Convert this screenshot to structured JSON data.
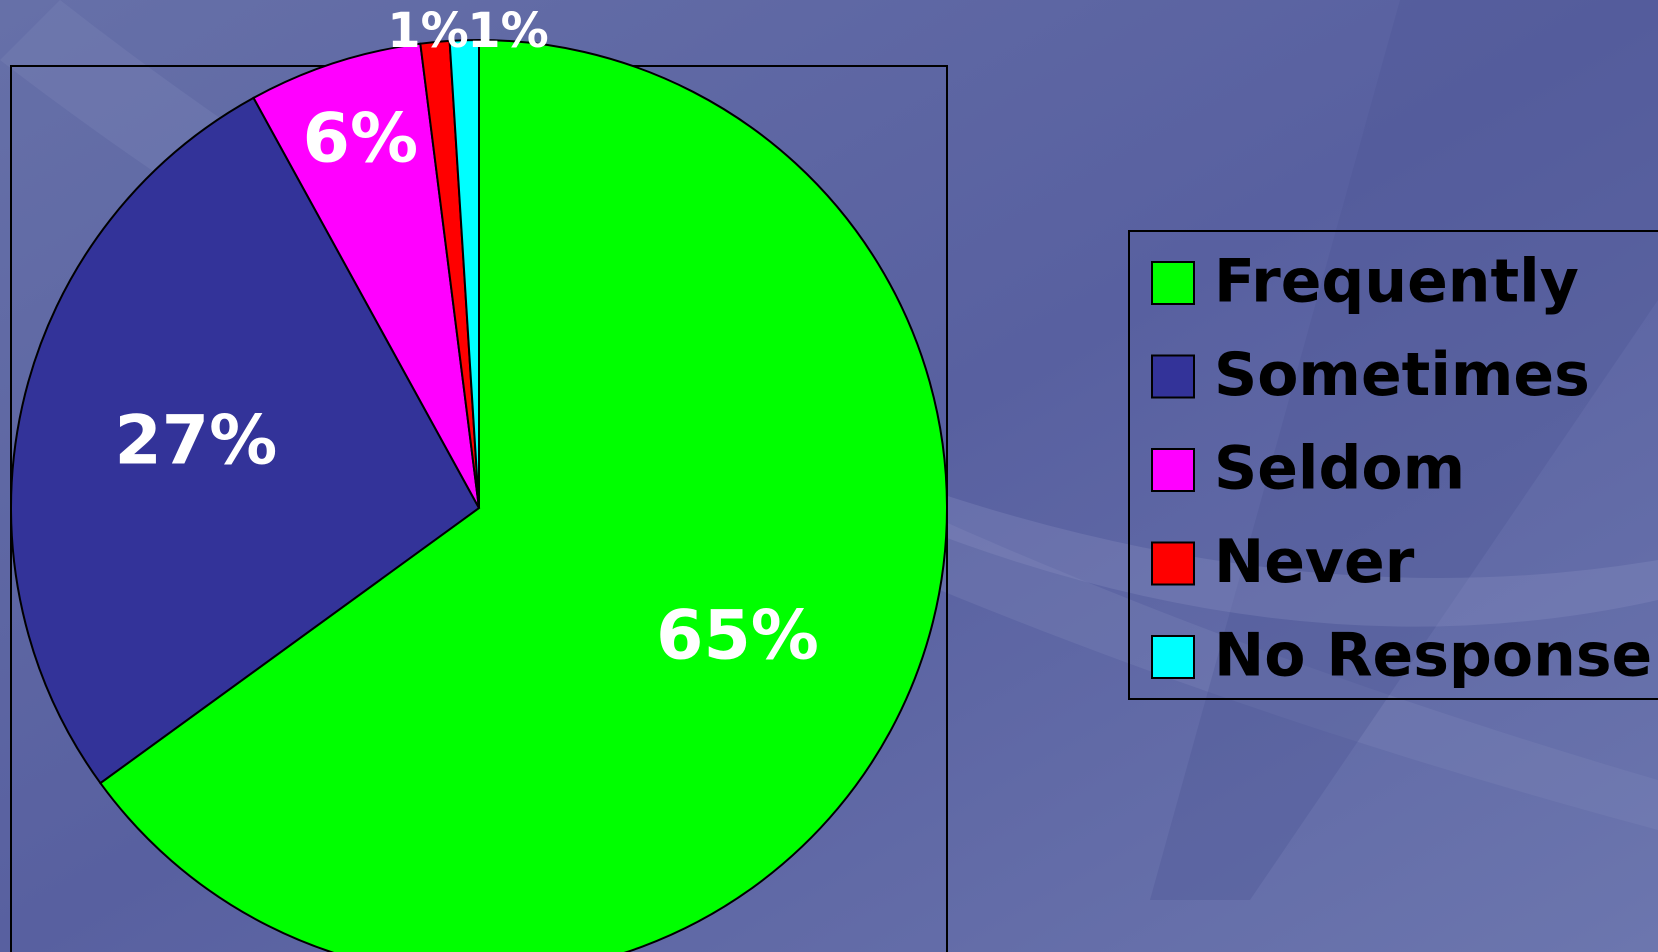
{
  "chart_data": {
    "type": "pie",
    "categories": [
      "Frequently",
      "Sometimes",
      "Seldom",
      "Never",
      "No Response"
    ],
    "values": [
      65,
      27,
      6,
      1,
      1
    ],
    "value_labels": [
      "65%",
      "27%",
      "6%",
      "1%",
      "1%"
    ],
    "colors": [
      "#00ff00",
      "#333399",
      "#ff00ff",
      "#ff0000",
      "#00ffff"
    ],
    "legend": "right"
  }
}
